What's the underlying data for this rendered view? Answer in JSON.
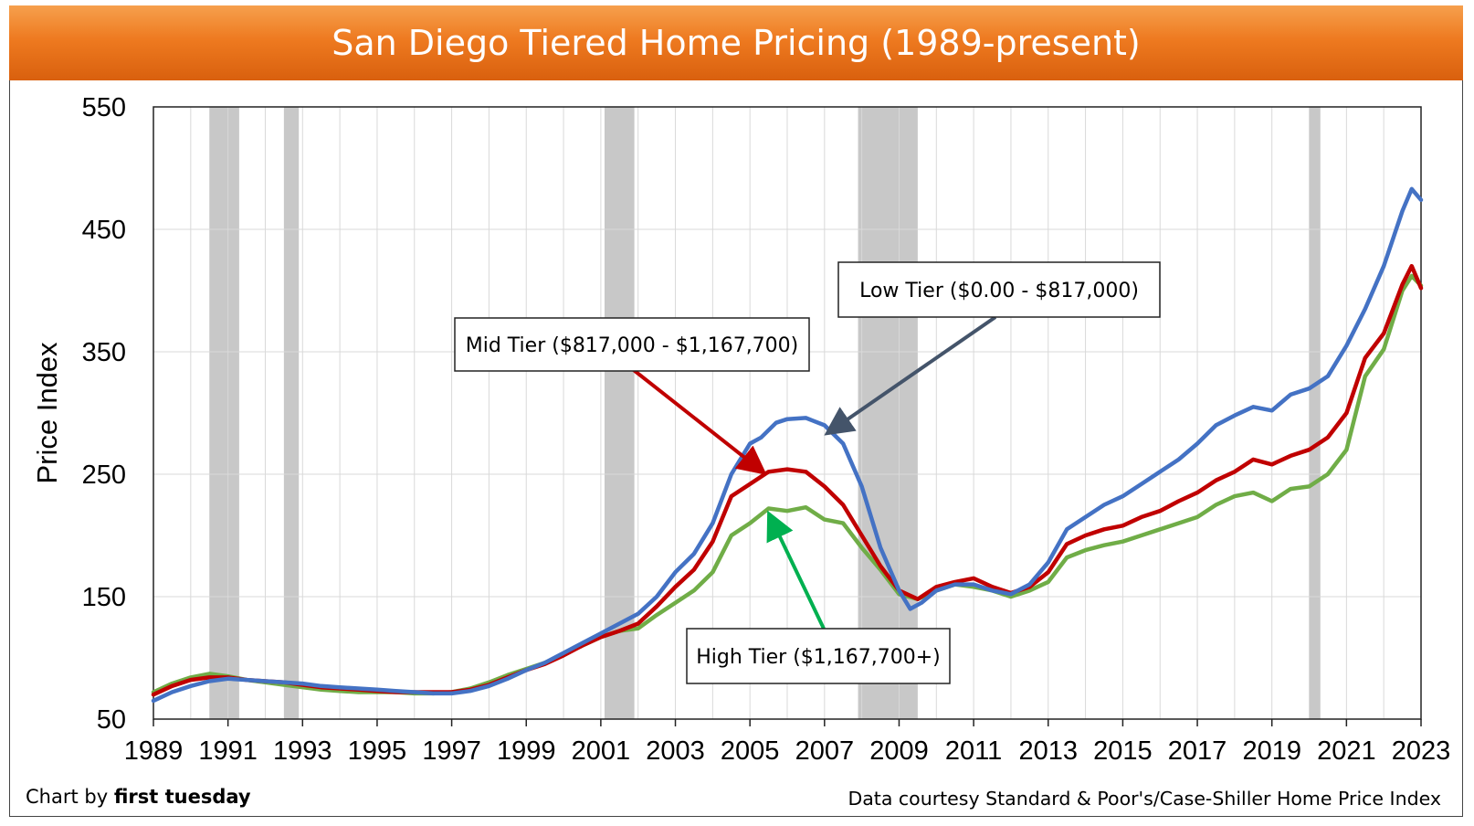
{
  "title": "San Diego Tiered Home Pricing (1989-present)",
  "credit_left_prefix": "Chart by ",
  "credit_left_brand": "first tuesday",
  "credit_right": "Data courtesy Standard & Poor's/Case-Shiller Home Price Index",
  "colors": {
    "title_bar": "#ee7a20",
    "low": "#4472c4",
    "mid": "#c00000",
    "high": "#70ad47",
    "recession": "#c8c8c8",
    "low_arrow": "#44546a",
    "mid_arrow": "#c00000",
    "high_arrow": "#00b050"
  },
  "chart_data": {
    "type": "line",
    "title": "San Diego Tiered Home Pricing (1989-present)",
    "xlabel": "",
    "ylabel": "Price Index",
    "xlim": [
      1989,
      2023
    ],
    "ylim": [
      50,
      550
    ],
    "x_ticks": [
      "1989",
      "1991",
      "1993",
      "1995",
      "1997",
      "1999",
      "2001",
      "2003",
      "2005",
      "2007",
      "2009",
      "2011",
      "2013",
      "2015",
      "2017",
      "2019",
      "2021",
      "2023"
    ],
    "y_ticks": [
      50,
      150,
      250,
      350,
      450,
      550
    ],
    "grid": true,
    "recessions": [
      [
        1990.5,
        1991.3
      ],
      [
        1992.5,
        1992.9
      ],
      [
        2001.1,
        2001.9
      ],
      [
        2007.9,
        2009.5
      ],
      [
        2020.0,
        2020.3
      ]
    ],
    "series": [
      {
        "name": "Low Tier ($0.00 - $817,000)",
        "color": "#4472c4",
        "points": [
          [
            1989,
            65
          ],
          [
            1989.5,
            72
          ],
          [
            1990,
            77
          ],
          [
            1990.5,
            81
          ],
          [
            1991,
            83
          ],
          [
            1991.5,
            82
          ],
          [
            1992,
            81
          ],
          [
            1992.5,
            80
          ],
          [
            1993,
            79
          ],
          [
            1993.5,
            77
          ],
          [
            1994,
            76
          ],
          [
            1994.5,
            75
          ],
          [
            1995,
            74
          ],
          [
            1995.5,
            73
          ],
          [
            1996,
            72
          ],
          [
            1996.5,
            71
          ],
          [
            1997,
            71
          ],
          [
            1997.5,
            73
          ],
          [
            1998,
            77
          ],
          [
            1998.5,
            83
          ],
          [
            1999,
            90
          ],
          [
            1999.5,
            96
          ],
          [
            2000,
            104
          ],
          [
            2000.5,
            112
          ],
          [
            2001,
            120
          ],
          [
            2001.5,
            128
          ],
          [
            2002,
            136
          ],
          [
            2002.5,
            150
          ],
          [
            2003,
            170
          ],
          [
            2003.5,
            185
          ],
          [
            2004,
            210
          ],
          [
            2004.5,
            250
          ],
          [
            2005,
            275
          ],
          [
            2005.3,
            280
          ],
          [
            2005.7,
            292
          ],
          [
            2006,
            295
          ],
          [
            2006.5,
            296
          ],
          [
            2007,
            290
          ],
          [
            2007.5,
            275
          ],
          [
            2008,
            240
          ],
          [
            2008.5,
            190
          ],
          [
            2009,
            155
          ],
          [
            2009.3,
            140
          ],
          [
            2009.6,
            145
          ],
          [
            2010,
            155
          ],
          [
            2010.5,
            160
          ],
          [
            2011,
            160
          ],
          [
            2011.5,
            155
          ],
          [
            2012,
            152
          ],
          [
            2012.5,
            160
          ],
          [
            2013,
            178
          ],
          [
            2013.5,
            205
          ],
          [
            2014,
            215
          ],
          [
            2014.5,
            225
          ],
          [
            2015,
            232
          ],
          [
            2015.5,
            242
          ],
          [
            2016,
            252
          ],
          [
            2016.5,
            262
          ],
          [
            2017,
            275
          ],
          [
            2017.5,
            290
          ],
          [
            2018,
            298
          ],
          [
            2018.5,
            305
          ],
          [
            2019,
            302
          ],
          [
            2019.5,
            315
          ],
          [
            2020,
            320
          ],
          [
            2020.5,
            330
          ],
          [
            2021,
            355
          ],
          [
            2021.5,
            385
          ],
          [
            2022,
            420
          ],
          [
            2022.5,
            465
          ],
          [
            2022.75,
            483
          ],
          [
            2023,
            474
          ]
        ]
      },
      {
        "name": "Mid Tier ($817,000 - $1,167,700)",
        "color": "#c00000",
        "points": [
          [
            1989,
            70
          ],
          [
            1989.5,
            77
          ],
          [
            1990,
            82
          ],
          [
            1990.5,
            84
          ],
          [
            1991,
            84
          ],
          [
            1991.5,
            82
          ],
          [
            1992,
            81
          ],
          [
            1992.5,
            80
          ],
          [
            1993,
            78
          ],
          [
            1993.5,
            76
          ],
          [
            1994,
            75
          ],
          [
            1994.5,
            74
          ],
          [
            1995,
            73
          ],
          [
            1995.5,
            72
          ],
          [
            1996,
            72
          ],
          [
            1996.5,
            72
          ],
          [
            1997,
            72
          ],
          [
            1997.5,
            74
          ],
          [
            1998,
            78
          ],
          [
            1998.5,
            84
          ],
          [
            1999,
            90
          ],
          [
            1999.5,
            95
          ],
          [
            2000,
            102
          ],
          [
            2000.5,
            110
          ],
          [
            2001,
            117
          ],
          [
            2001.5,
            122
          ],
          [
            2002,
            128
          ],
          [
            2002.5,
            142
          ],
          [
            2003,
            158
          ],
          [
            2003.5,
            172
          ],
          [
            2004,
            195
          ],
          [
            2004.5,
            232
          ],
          [
            2005,
            242
          ],
          [
            2005.5,
            252
          ],
          [
            2006,
            254
          ],
          [
            2006.5,
            252
          ],
          [
            2007,
            240
          ],
          [
            2007.5,
            225
          ],
          [
            2008,
            200
          ],
          [
            2008.5,
            175
          ],
          [
            2009,
            155
          ],
          [
            2009.5,
            148
          ],
          [
            2010,
            158
          ],
          [
            2010.5,
            162
          ],
          [
            2011,
            165
          ],
          [
            2011.5,
            158
          ],
          [
            2012,
            153
          ],
          [
            2012.5,
            158
          ],
          [
            2013,
            170
          ],
          [
            2013.5,
            193
          ],
          [
            2014,
            200
          ],
          [
            2014.5,
            205
          ],
          [
            2015,
            208
          ],
          [
            2015.5,
            215
          ],
          [
            2016,
            220
          ],
          [
            2016.5,
            228
          ],
          [
            2017,
            235
          ],
          [
            2017.5,
            245
          ],
          [
            2018,
            252
          ],
          [
            2018.5,
            262
          ],
          [
            2019,
            258
          ],
          [
            2019.5,
            265
          ],
          [
            2020,
            270
          ],
          [
            2020.5,
            280
          ],
          [
            2021,
            300
          ],
          [
            2021.5,
            345
          ],
          [
            2022,
            365
          ],
          [
            2022.5,
            405
          ],
          [
            2022.75,
            420
          ],
          [
            2023,
            402
          ]
        ]
      },
      {
        "name": "High Tier ($1,167,700+)",
        "color": "#70ad47",
        "points": [
          [
            1989,
            72
          ],
          [
            1989.5,
            79
          ],
          [
            1990,
            84
          ],
          [
            1990.5,
            87
          ],
          [
            1991,
            85
          ],
          [
            1991.5,
            82
          ],
          [
            1992,
            80
          ],
          [
            1992.5,
            78
          ],
          [
            1993,
            76
          ],
          [
            1993.5,
            74
          ],
          [
            1994,
            73
          ],
          [
            1994.5,
            72
          ],
          [
            1995,
            72
          ],
          [
            1995.5,
            72
          ],
          [
            1996,
            71
          ],
          [
            1996.5,
            71
          ],
          [
            1997,
            72
          ],
          [
            1997.5,
            75
          ],
          [
            1998,
            80
          ],
          [
            1998.5,
            86
          ],
          [
            1999,
            91
          ],
          [
            1999.5,
            96
          ],
          [
            2000,
            103
          ],
          [
            2000.5,
            110
          ],
          [
            2001,
            117
          ],
          [
            2001.5,
            122
          ],
          [
            2002,
            124
          ],
          [
            2002.5,
            135
          ],
          [
            2003,
            145
          ],
          [
            2003.5,
            155
          ],
          [
            2004,
            170
          ],
          [
            2004.5,
            200
          ],
          [
            2005,
            210
          ],
          [
            2005.5,
            222
          ],
          [
            2006,
            220
          ],
          [
            2006.5,
            223
          ],
          [
            2007,
            213
          ],
          [
            2007.5,
            210
          ],
          [
            2008,
            190
          ],
          [
            2008.5,
            172
          ],
          [
            2009,
            152
          ],
          [
            2009.5,
            148
          ],
          [
            2010,
            155
          ],
          [
            2010.5,
            160
          ],
          [
            2011,
            158
          ],
          [
            2011.5,
            155
          ],
          [
            2012,
            150
          ],
          [
            2012.5,
            155
          ],
          [
            2013,
            162
          ],
          [
            2013.5,
            182
          ],
          [
            2014,
            188
          ],
          [
            2014.5,
            192
          ],
          [
            2015,
            195
          ],
          [
            2015.5,
            200
          ],
          [
            2016,
            205
          ],
          [
            2016.5,
            210
          ],
          [
            2017,
            215
          ],
          [
            2017.5,
            225
          ],
          [
            2018,
            232
          ],
          [
            2018.5,
            235
          ],
          [
            2019,
            228
          ],
          [
            2019.5,
            238
          ],
          [
            2020,
            240
          ],
          [
            2020.5,
            250
          ],
          [
            2021,
            270
          ],
          [
            2021.5,
            330
          ],
          [
            2022,
            352
          ],
          [
            2022.5,
            400
          ],
          [
            2022.75,
            412
          ],
          [
            2023,
            404
          ]
        ]
      }
    ],
    "annotations": [
      {
        "text": "Low Tier ($0.00 - $817,000)",
        "series": "Low Tier ($0.00 - $817,000)",
        "arrow_to": [
          2007.15,
          285
        ]
      },
      {
        "text": "Mid Tier ($817,000 - $1,167,700)",
        "series": "Mid Tier ($817,000 - $1,167,700)",
        "arrow_to": [
          2005.3,
          253
        ]
      },
      {
        "text": "High Tier ($1,167,700+)",
        "series": "High Tier ($1,167,700+)",
        "arrow_to": [
          2005.55,
          215
        ]
      }
    ]
  }
}
